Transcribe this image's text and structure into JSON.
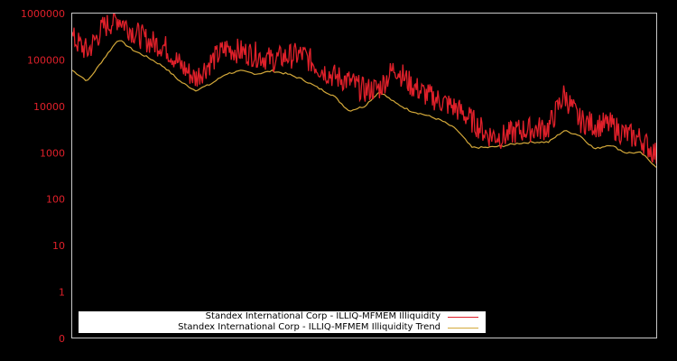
{
  "chart_data": {
    "type": "line",
    "title": "",
    "xlabel": "",
    "ylabel": "",
    "yscale": "log",
    "y_ticks": [
      {
        "label": "1000000",
        "value": 1000000
      },
      {
        "label": "100000",
        "value": 100000
      },
      {
        "label": "10000",
        "value": 10000
      },
      {
        "label": "1000",
        "value": 1000
      },
      {
        "label": "100",
        "value": 100
      },
      {
        "label": "10",
        "value": 10
      },
      {
        "label": "1",
        "value": 1
      },
      {
        "label": "0",
        "value": 0
      }
    ],
    "ylim": [
      0,
      1000000
    ],
    "grid": false,
    "legend_position": "lower-left-inside",
    "x_index": [
      0,
      1,
      2,
      3,
      4,
      5,
      6,
      7,
      8,
      9,
      10,
      11,
      12,
      13,
      14,
      15,
      16,
      17,
      18,
      19,
      20,
      21,
      22,
      23,
      24,
      25,
      26,
      27,
      28,
      29,
      30,
      31,
      32,
      33,
      34,
      35,
      36,
      37,
      38
    ],
    "series": [
      {
        "name": "Standex International Corp - ILLIQ-MFMEM Illiquidity",
        "color": "#e0202a",
        "values": [
          300000,
          150000,
          500000,
          800000,
          400000,
          250000,
          200000,
          80000,
          40000,
          90000,
          180000,
          150000,
          130000,
          100000,
          120000,
          130000,
          70000,
          45000,
          35000,
          22000,
          25000,
          70000,
          30000,
          18000,
          13000,
          9000,
          5000,
          2500,
          2200,
          3000,
          3200,
          3500,
          18000,
          5000,
          4000,
          4000,
          2500,
          2000,
          900
        ]
      },
      {
        "name": "Standex International Corp - ILLIQ-MFMEM Illiquidity Trend",
        "color": "#d4a93a",
        "values": [
          60000,
          35000,
          100000,
          280000,
          160000,
          110000,
          70000,
          35000,
          22000,
          30000,
          50000,
          58000,
          50000,
          58000,
          50000,
          38000,
          25000,
          17000,
          8000,
          10000,
          21000,
          12000,
          8000,
          6500,
          5000,
          3200,
          1300,
          1300,
          1400,
          1600,
          1700,
          1700,
          3000,
          2400,
          1200,
          1500,
          1000,
          1000,
          500
        ]
      }
    ]
  },
  "legend": {
    "items": [
      {
        "label": "Standex International Corp - ILLIQ-MFMEM Illiquidity",
        "color": "#e0202a"
      },
      {
        "label": "Standex International Corp - ILLIQ-MFMEM Illiquidity Trend",
        "color": "#d4a93a"
      }
    ]
  },
  "colors": {
    "background": "#000000",
    "axis": "#c8c8c8",
    "tick_label": "#e0202a"
  }
}
